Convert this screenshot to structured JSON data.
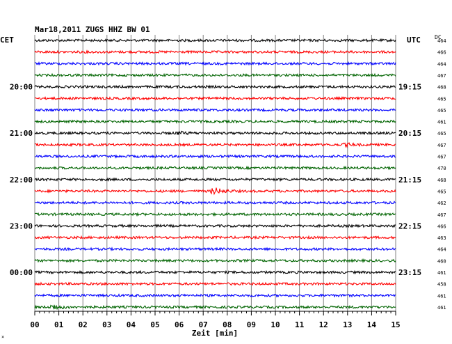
{
  "header": {
    "title": "Mar18,2011  ZUGS HHZ BW 01",
    "left_timezone": "CET",
    "right_timezone": "UTC",
    "dc_label": "DC"
  },
  "footer": {
    "xlabel": "Zeit [min]",
    "corner_mark": "×"
  },
  "chart_data": {
    "type": "line",
    "title": "Mar18,2011  ZUGS HHZ BW 01",
    "xlabel": "Zeit [min]",
    "ylabel": "",
    "xlim": [
      0,
      15
    ],
    "x_ticks": [
      "00",
      "01",
      "02",
      "03",
      "04",
      "05",
      "06",
      "07",
      "08",
      "09",
      "10",
      "11",
      "12",
      "13",
      "14",
      "15"
    ],
    "grid": true,
    "trace_colors": [
      "#000000",
      "#ff0000",
      "#0000ff",
      "#006400"
    ],
    "rows": [
      {
        "dc": "464",
        "left_time": "",
        "right_time": ""
      },
      {
        "dc": "466",
        "left_time": "",
        "right_time": ""
      },
      {
        "dc": "464",
        "left_time": "",
        "right_time": ""
      },
      {
        "dc": "467",
        "left_time": "",
        "right_time": ""
      },
      {
        "dc": "468",
        "left_time": "20:00",
        "right_time": "19:15"
      },
      {
        "dc": "465",
        "left_time": "",
        "right_time": ""
      },
      {
        "dc": "465",
        "left_time": "",
        "right_time": ""
      },
      {
        "dc": "461",
        "left_time": "",
        "right_time": ""
      },
      {
        "dc": "465",
        "left_time": "21:00",
        "right_time": "20:15"
      },
      {
        "dc": "467",
        "left_time": "",
        "right_time": ""
      },
      {
        "dc": "467",
        "left_time": "",
        "right_time": ""
      },
      {
        "dc": "470",
        "left_time": "",
        "right_time": ""
      },
      {
        "dc": "468",
        "left_time": "22:00",
        "right_time": "21:15"
      },
      {
        "dc": "465",
        "left_time": "",
        "right_time": ""
      },
      {
        "dc": "462",
        "left_time": "",
        "right_time": ""
      },
      {
        "dc": "467",
        "left_time": "",
        "right_time": ""
      },
      {
        "dc": "466",
        "left_time": "23:00",
        "right_time": "22:15"
      },
      {
        "dc": "463",
        "left_time": "",
        "right_time": ""
      },
      {
        "dc": "464",
        "left_time": "",
        "right_time": ""
      },
      {
        "dc": "460",
        "left_time": "",
        "right_time": ""
      },
      {
        "dc": "461",
        "left_time": "00:00",
        "right_time": "23:15"
      },
      {
        "dc": "458",
        "left_time": "",
        "right_time": ""
      },
      {
        "dc": "461",
        "left_time": "",
        "right_time": ""
      },
      {
        "dc": "461",
        "left_time": "",
        "right_time": ""
      }
    ],
    "events": [
      {
        "row": 8,
        "minute": 6.0,
        "amplitude": 1.6
      },
      {
        "row": 9,
        "minute": 13.0,
        "amplitude": 1.5
      },
      {
        "row": 13,
        "minute": 7.5,
        "amplitude": 4.0
      },
      {
        "row": 23,
        "minute": 0.8,
        "amplitude": 3.2
      }
    ]
  }
}
